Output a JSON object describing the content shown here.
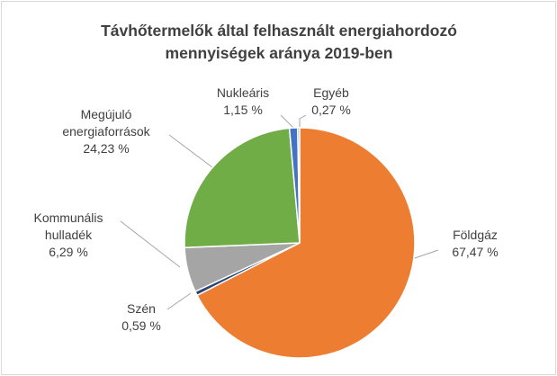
{
  "chart_data": {
    "type": "pie",
    "title": "Távhőtermelők által felhasznált energiahordozó mennyiségek aránya 2019-ben",
    "categories": [
      "Földgáz",
      "Szén",
      "Kommunális hulladék",
      "Megújuló energiaforrások",
      "Nukleáris",
      "Egyéb"
    ],
    "values": [
      67.47,
      0.59,
      6.29,
      24.23,
      1.15,
      0.27
    ],
    "value_labels": [
      "67,47 %",
      "0,59 %",
      "6,29 %",
      "24,23 %",
      "1,15 %",
      "0,27 %"
    ],
    "colors": [
      "#ed7d31",
      "#264478",
      "#a5a5a5",
      "#70ad47",
      "#4472c4",
      "#5b9bd5"
    ]
  }
}
